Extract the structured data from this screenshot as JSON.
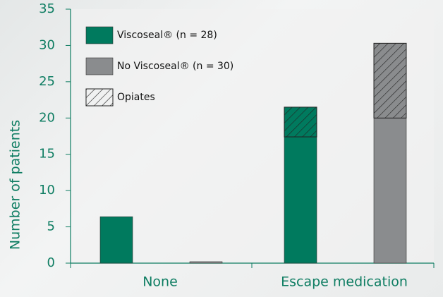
{
  "chart_data": {
    "type": "bar",
    "categories": [
      "None",
      "Escape medication"
    ],
    "y_label": "Number of patients",
    "series": [
      {
        "name": "Viscoseal® (n = 28)",
        "color": "#007a5e",
        "values": [
          6.4,
          17.4
        ],
        "opiates": [
          null,
          4.1
        ]
      },
      {
        "name": "No Viscoseal® (n = 30)",
        "color": "#8a8c8e",
        "values": [
          0.2,
          20
        ],
        "opiates": [
          null,
          10.3
        ]
      }
    ],
    "hatch_label": "Opiates",
    "ylim": [
      0,
      35
    ],
    "yticks": [
      0,
      5,
      10,
      15,
      20,
      25,
      30,
      35
    ]
  }
}
